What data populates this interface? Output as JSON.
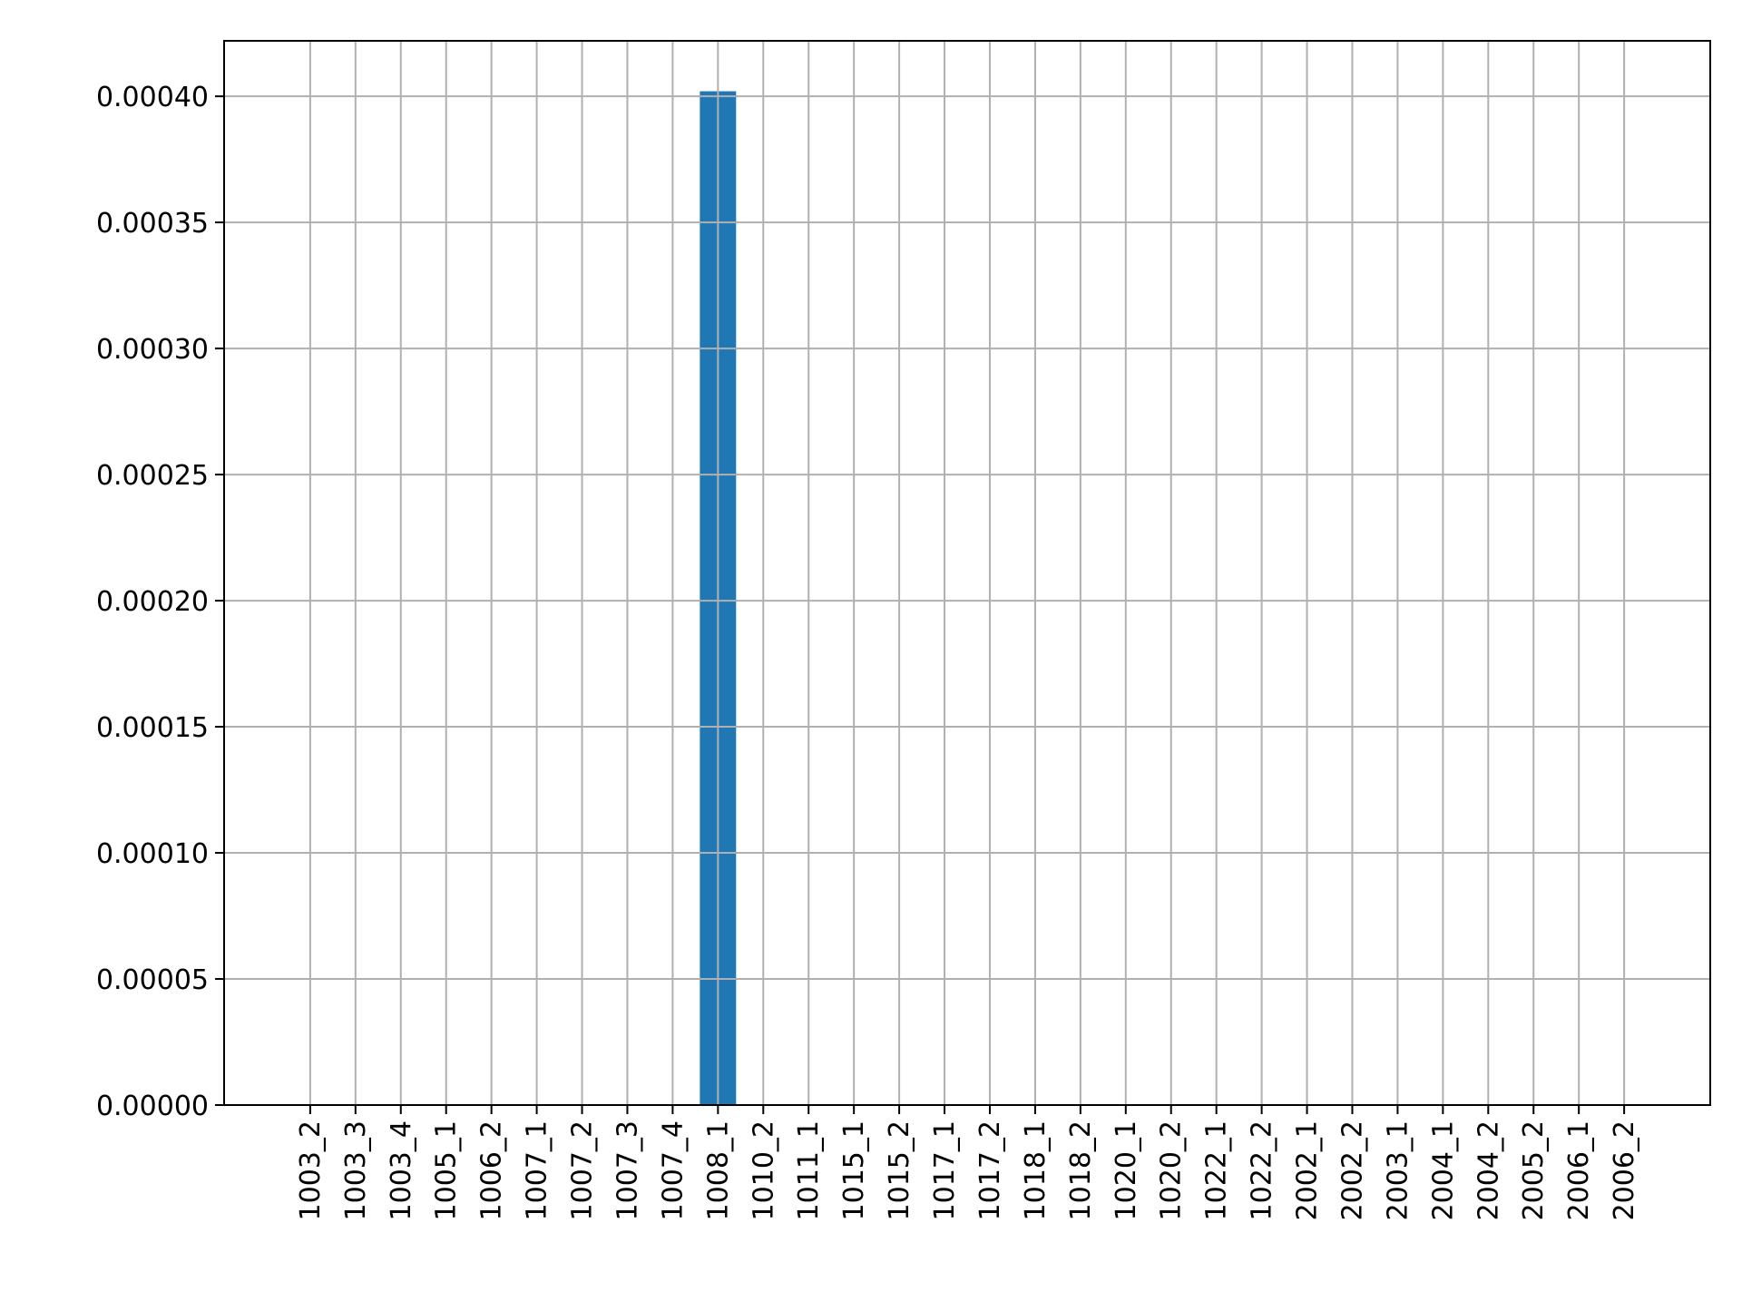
{
  "chart_data": {
    "type": "bar",
    "categories": [
      "1003_2",
      "1003_3",
      "1003_4",
      "1005_1",
      "1006_2",
      "1007_1",
      "1007_2",
      "1007_3",
      "1007_4",
      "1008_1",
      "1010_2",
      "1011_1",
      "1015_1",
      "1015_2",
      "1017_1",
      "1017_2",
      "1018_1",
      "1018_2",
      "1020_1",
      "1020_2",
      "1022_1",
      "1022_2",
      "2002_1",
      "2002_2",
      "2003_1",
      "2004_1",
      "2004_2",
      "2005_2",
      "2006_1",
      "2006_2"
    ],
    "values": [
      0,
      0,
      0,
      0,
      0,
      0,
      0,
      0,
      0,
      0.000402,
      0,
      0,
      0,
      0,
      0,
      0,
      0,
      0,
      0,
      0,
      0,
      0,
      0,
      0,
      0,
      0,
      0,
      0,
      0,
      0
    ],
    "ylim": [
      0,
      0.000422
    ],
    "yticks": [
      0,
      5e-05,
      0.0001,
      0.00015,
      0.0002,
      0.00025,
      0.0003,
      0.00035,
      0.0004
    ],
    "ytick_labels": [
      "0.00000",
      "0.00005",
      "0.00010",
      "0.00015",
      "0.00020",
      "0.00025",
      "0.00030",
      "0.00035",
      "0.00040"
    ],
    "grid": true,
    "bar_color": "#1f77b4",
    "grid_color": "#b0b0b0"
  }
}
